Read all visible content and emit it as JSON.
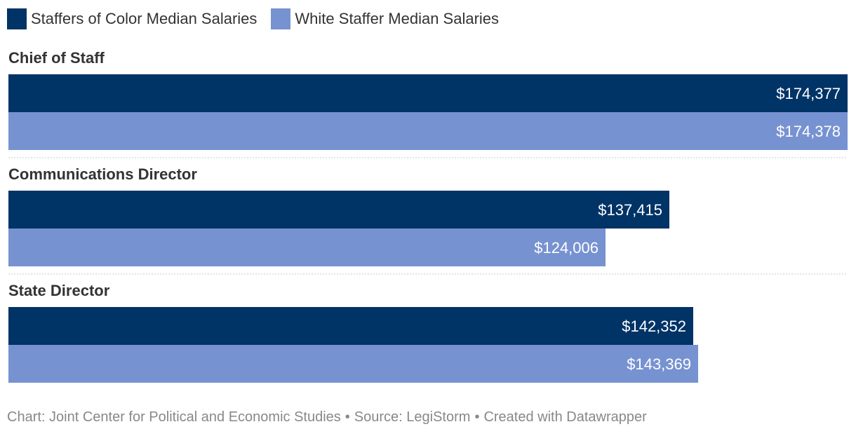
{
  "legend": [
    {
      "label": "Staffers of Color Median Salaries",
      "color": "#003366"
    },
    {
      "label": "White Staffer Median Salaries",
      "color": "#7792d1"
    }
  ],
  "footer": {
    "chart_credit": "Chart: Joint Center for Political and Economic Studies",
    "source": "Source: LegiStorm",
    "created_with": "Created with Datawrapper",
    "separator": "•"
  },
  "chart_data": {
    "type": "bar",
    "orientation": "horizontal",
    "grouped": true,
    "categories": [
      "Chief of Staff",
      "Communications Director",
      "State Director"
    ],
    "series": [
      {
        "name": "Staffers of Color Median Salaries",
        "color": "#003366",
        "values": [
          174377,
          137415,
          142352
        ],
        "labels": [
          "$174,377",
          "$137,415",
          "$142,352"
        ]
      },
      {
        "name": "White Staffer Median Salaries",
        "color": "#7792d1",
        "values": [
          174378,
          124006,
          143369
        ],
        "labels": [
          "$174,378",
          "$124,006",
          "$143,369"
        ]
      }
    ],
    "xlim": [
      0,
      174378
    ],
    "grid": false,
    "legend_position": "top-left"
  }
}
